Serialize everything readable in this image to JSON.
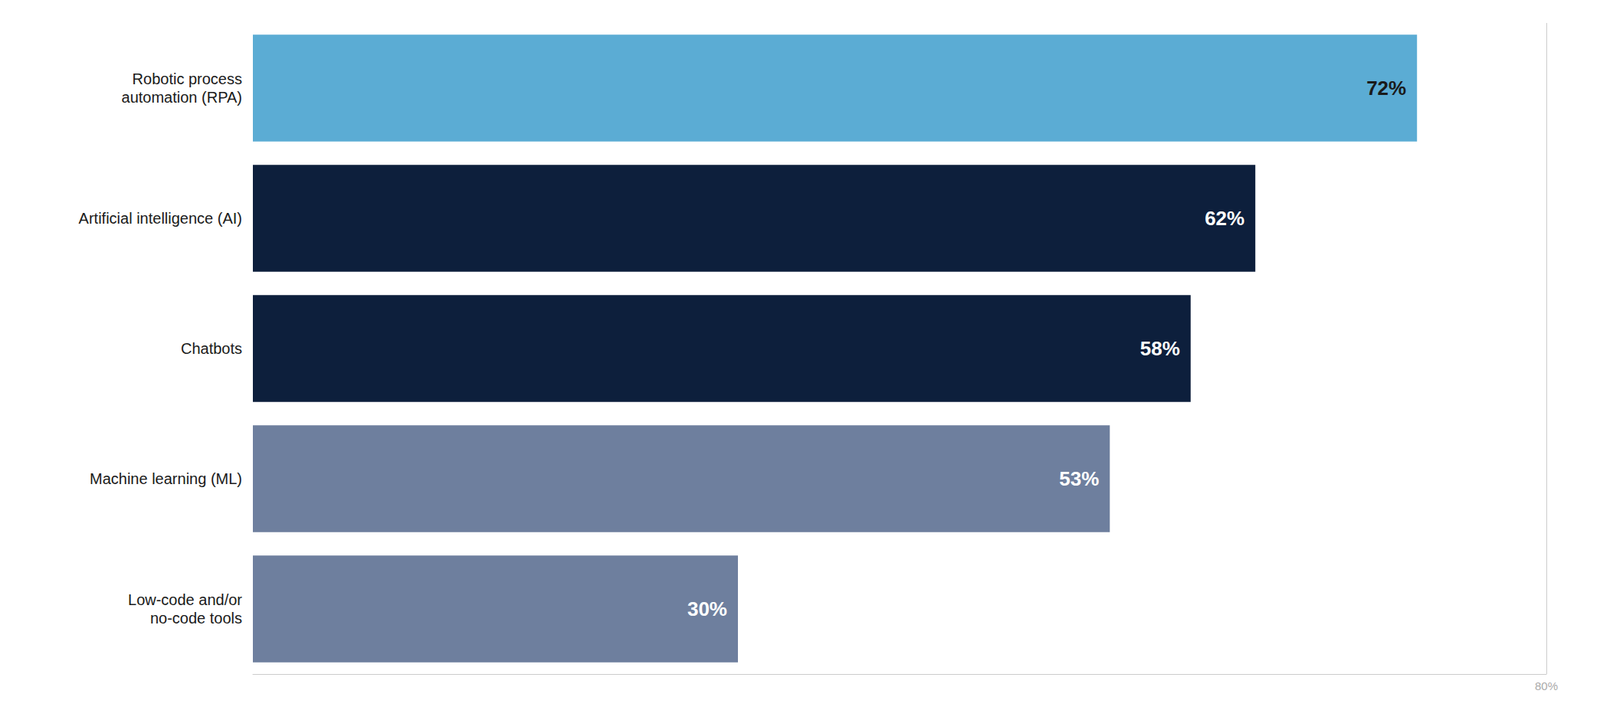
{
  "chart_data": {
    "type": "bar",
    "orientation": "horizontal",
    "categories": [
      "Low-code and/or\nno-code tools",
      "Machine learning (ML)",
      "Chatbots",
      "Artificial intelligence (AI)",
      "Robotic process\nautomation (RPA)"
    ],
    "values": [
      30,
      53,
      58,
      62,
      72
    ],
    "value_labels": [
      "30%",
      "53%",
      "58%",
      "62%",
      "72%"
    ],
    "colors": [
      "#6e7f9e",
      "#6e7f9e",
      "#0d1f3c",
      "#0d1f3c",
      "#5bacd4"
    ],
    "xlim": [
      0,
      80
    ],
    "xticks": [
      {
        "value": 80,
        "label": "80%"
      }
    ],
    "grid": true,
    "data_labels": true
  }
}
